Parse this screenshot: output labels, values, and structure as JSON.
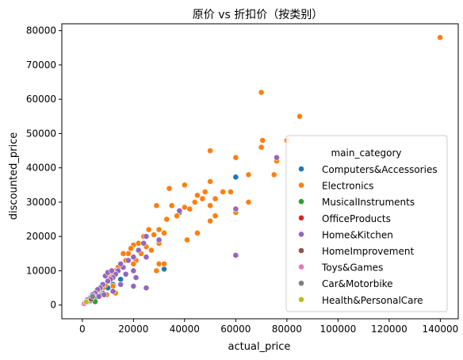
{
  "chart_data": {
    "type": "scatter",
    "title": "原价 vs 折扣价（按类别）",
    "xlabel": "actual_price",
    "ylabel": "discounted_price",
    "xlim": [
      -8000,
      147000
    ],
    "ylim": [
      -4000,
      82000
    ],
    "xticks": [
      0,
      20000,
      40000,
      60000,
      80000,
      100000,
      120000,
      140000
    ],
    "yticks": [
      0,
      10000,
      20000,
      30000,
      40000,
      50000,
      60000,
      70000,
      80000
    ],
    "xtick_labels": [
      "0",
      "20000",
      "40000",
      "60000",
      "80000",
      "100000",
      "120000",
      "140000"
    ],
    "ytick_labels": [
      "0",
      "10000",
      "20000",
      "30000",
      "40000",
      "50000",
      "60000",
      "70000",
      "80000"
    ],
    "grid": false,
    "legend": {
      "title": "main_category",
      "placement": "center-right"
    },
    "series": [
      {
        "name": "Computers&Accessories",
        "color": "#1f77b4",
        "points": [
          [
            60000,
            37300
          ],
          [
            38000,
            27000
          ],
          [
            32000,
            10500
          ],
          [
            10000,
            5000
          ],
          [
            5000,
            2000
          ],
          [
            8000,
            3500
          ],
          [
            15000,
            7500
          ],
          [
            3000,
            1200
          ],
          [
            12000,
            6000
          ],
          [
            2000,
            800
          ]
        ]
      },
      {
        "name": "Electronics",
        "color": "#ff7f0e",
        "points": [
          [
            139900,
            78000
          ],
          [
            70000,
            62000
          ],
          [
            85000,
            55000
          ],
          [
            80000,
            48000
          ],
          [
            70500,
            48000
          ],
          [
            70000,
            46000
          ],
          [
            50000,
            45000
          ],
          [
            60000,
            43000
          ],
          [
            76000,
            42000
          ],
          [
            65000,
            38000
          ],
          [
            75000,
            38000
          ],
          [
            40000,
            35000
          ],
          [
            34000,
            34000
          ],
          [
            50000,
            36000
          ],
          [
            45000,
            32000
          ],
          [
            48000,
            33000
          ],
          [
            52000,
            31000
          ],
          [
            55000,
            33000
          ],
          [
            58000,
            33000
          ],
          [
            47000,
            31000
          ],
          [
            44000,
            30000
          ],
          [
            50000,
            29000
          ],
          [
            40000,
            28500
          ],
          [
            42000,
            28000
          ],
          [
            65000,
            30000
          ],
          [
            60000,
            27000
          ],
          [
            35000,
            29000
          ],
          [
            29000,
            29000
          ],
          [
            37000,
            26000
          ],
          [
            33000,
            25000
          ],
          [
            52000,
            26000
          ],
          [
            50000,
            24500
          ],
          [
            45000,
            21000
          ],
          [
            41000,
            19000
          ],
          [
            30000,
            22000
          ],
          [
            32000,
            21000
          ],
          [
            28000,
            20500
          ],
          [
            26000,
            22000
          ],
          [
            24000,
            20000
          ],
          [
            22000,
            18000
          ],
          [
            20000,
            17500
          ],
          [
            19000,
            16500
          ],
          [
            30000,
            18000
          ],
          [
            25000,
            17000
          ],
          [
            18000,
            15000
          ],
          [
            16000,
            15000
          ],
          [
            17000,
            13000
          ],
          [
            15000,
            12000
          ],
          [
            30000,
            12000
          ],
          [
            32000,
            12000
          ],
          [
            29000,
            10000
          ],
          [
            14000,
            11000
          ],
          [
            13000,
            10000
          ],
          [
            12000,
            9000
          ],
          [
            11000,
            8000
          ],
          [
            10000,
            7000
          ],
          [
            12000,
            5500
          ],
          [
            9000,
            6000
          ],
          [
            8000,
            5000
          ],
          [
            7000,
            4500
          ],
          [
            6000,
            4000
          ],
          [
            5000,
            3500
          ],
          [
            4000,
            3000
          ],
          [
            3000,
            2200
          ],
          [
            2000,
            1500
          ],
          [
            1500,
            1000
          ],
          [
            1000,
            600
          ],
          [
            13000,
            3500
          ],
          [
            9500,
            3000
          ],
          [
            21000,
            13000
          ],
          [
            23000,
            15000
          ],
          [
            27000,
            16000
          ],
          [
            20000,
            12000
          ]
        ]
      },
      {
        "name": "MusicalInstruments",
        "color": "#2ca02c",
        "points": [
          [
            5000,
            1000
          ],
          [
            3000,
            1800
          ],
          [
            7000,
            2800
          ]
        ]
      },
      {
        "name": "OfficeProducts",
        "color": "#d62728",
        "points": [
          [
            1000,
            500
          ],
          [
            600,
            350
          ],
          [
            1500,
            800
          ]
        ]
      },
      {
        "name": "Home&Kitchen",
        "color": "#9467bd",
        "points": [
          [
            76000,
            43000
          ],
          [
            60000,
            28000
          ],
          [
            60000,
            14500
          ],
          [
            38000,
            27500
          ],
          [
            25000,
            20000
          ],
          [
            24000,
            18000
          ],
          [
            22000,
            16000
          ],
          [
            20000,
            14000
          ],
          [
            18000,
            13000
          ],
          [
            16000,
            11000
          ],
          [
            15000,
            12000
          ],
          [
            14000,
            10000
          ],
          [
            13000,
            9000
          ],
          [
            12000,
            8000
          ],
          [
            11000,
            7500
          ],
          [
            10000,
            7000
          ],
          [
            9000,
            8500
          ],
          [
            8000,
            6000
          ],
          [
            7000,
            5000
          ],
          [
            6000,
            4500
          ],
          [
            5000,
            3500
          ],
          [
            4000,
            3000
          ],
          [
            3000,
            2000
          ],
          [
            2000,
            1500
          ],
          [
            1000,
            700
          ],
          [
            30000,
            19000
          ],
          [
            25000,
            14000
          ],
          [
            20000,
            10000
          ],
          [
            25000,
            5000
          ],
          [
            20000,
            5500
          ],
          [
            15000,
            6000
          ],
          [
            12000,
            4000
          ],
          [
            10000,
            9500
          ],
          [
            11500,
            10000
          ],
          [
            8500,
            3000
          ],
          [
            6500,
            2500
          ],
          [
            17000,
            9000
          ],
          [
            21000,
            8000
          ]
        ]
      },
      {
        "name": "HomeImprovement",
        "color": "#8c564b",
        "points": [
          [
            2000,
            1000
          ],
          [
            3500,
            1700
          ]
        ]
      },
      {
        "name": "Toys&Games",
        "color": "#e377c2",
        "points": [
          [
            800,
            450
          ]
        ]
      },
      {
        "name": "Car&Motorbike",
        "color": "#7f7f7f",
        "points": [
          [
            4000,
            2500
          ]
        ]
      },
      {
        "name": "Health&PersonalCare",
        "color": "#bcbd22",
        "points": [
          [
            1500,
            900
          ]
        ]
      }
    ]
  }
}
